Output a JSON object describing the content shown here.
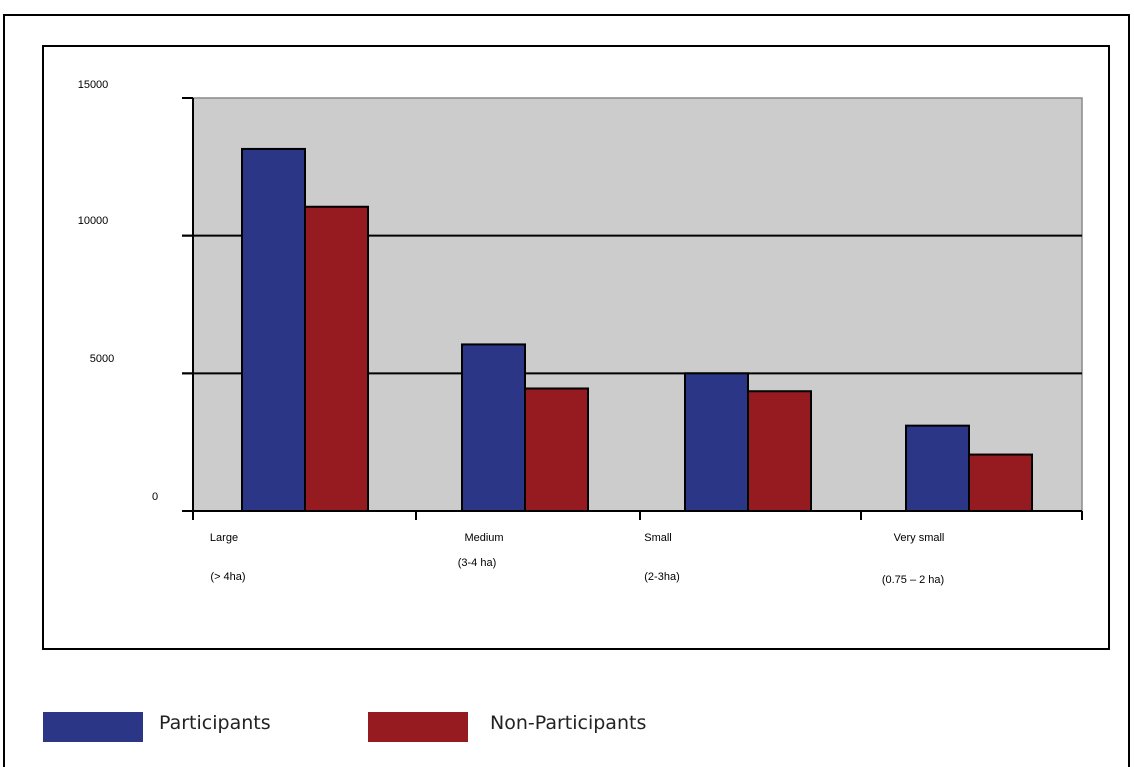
{
  "chart_data": {
    "type": "bar",
    "title": "",
    "xlabel": "",
    "ylabel": "",
    "ylim": [
      0,
      15000
    ],
    "yticks": [
      0,
      5000,
      10000,
      15000
    ],
    "categories": [
      {
        "name": "Large",
        "sub": "(> 4ha)"
      },
      {
        "name": "Medium",
        "sub": "(3-4 ha)"
      },
      {
        "name": "Small",
        "sub": "(2-3ha)"
      },
      {
        "name": "Very small",
        "sub": "(0.75 – 2 ha)"
      }
    ],
    "series": [
      {
        "name": "Participants",
        "color": "#2b3686",
        "values": [
          13150,
          6050,
          5000,
          3100
        ]
      },
      {
        "name": "Non-Participants",
        "color": "#961b20",
        "values": [
          11050,
          4450,
          4350,
          2050
        ]
      }
    ],
    "grid": true,
    "plot_background": "#cccccc",
    "legend_position": "bottom"
  }
}
